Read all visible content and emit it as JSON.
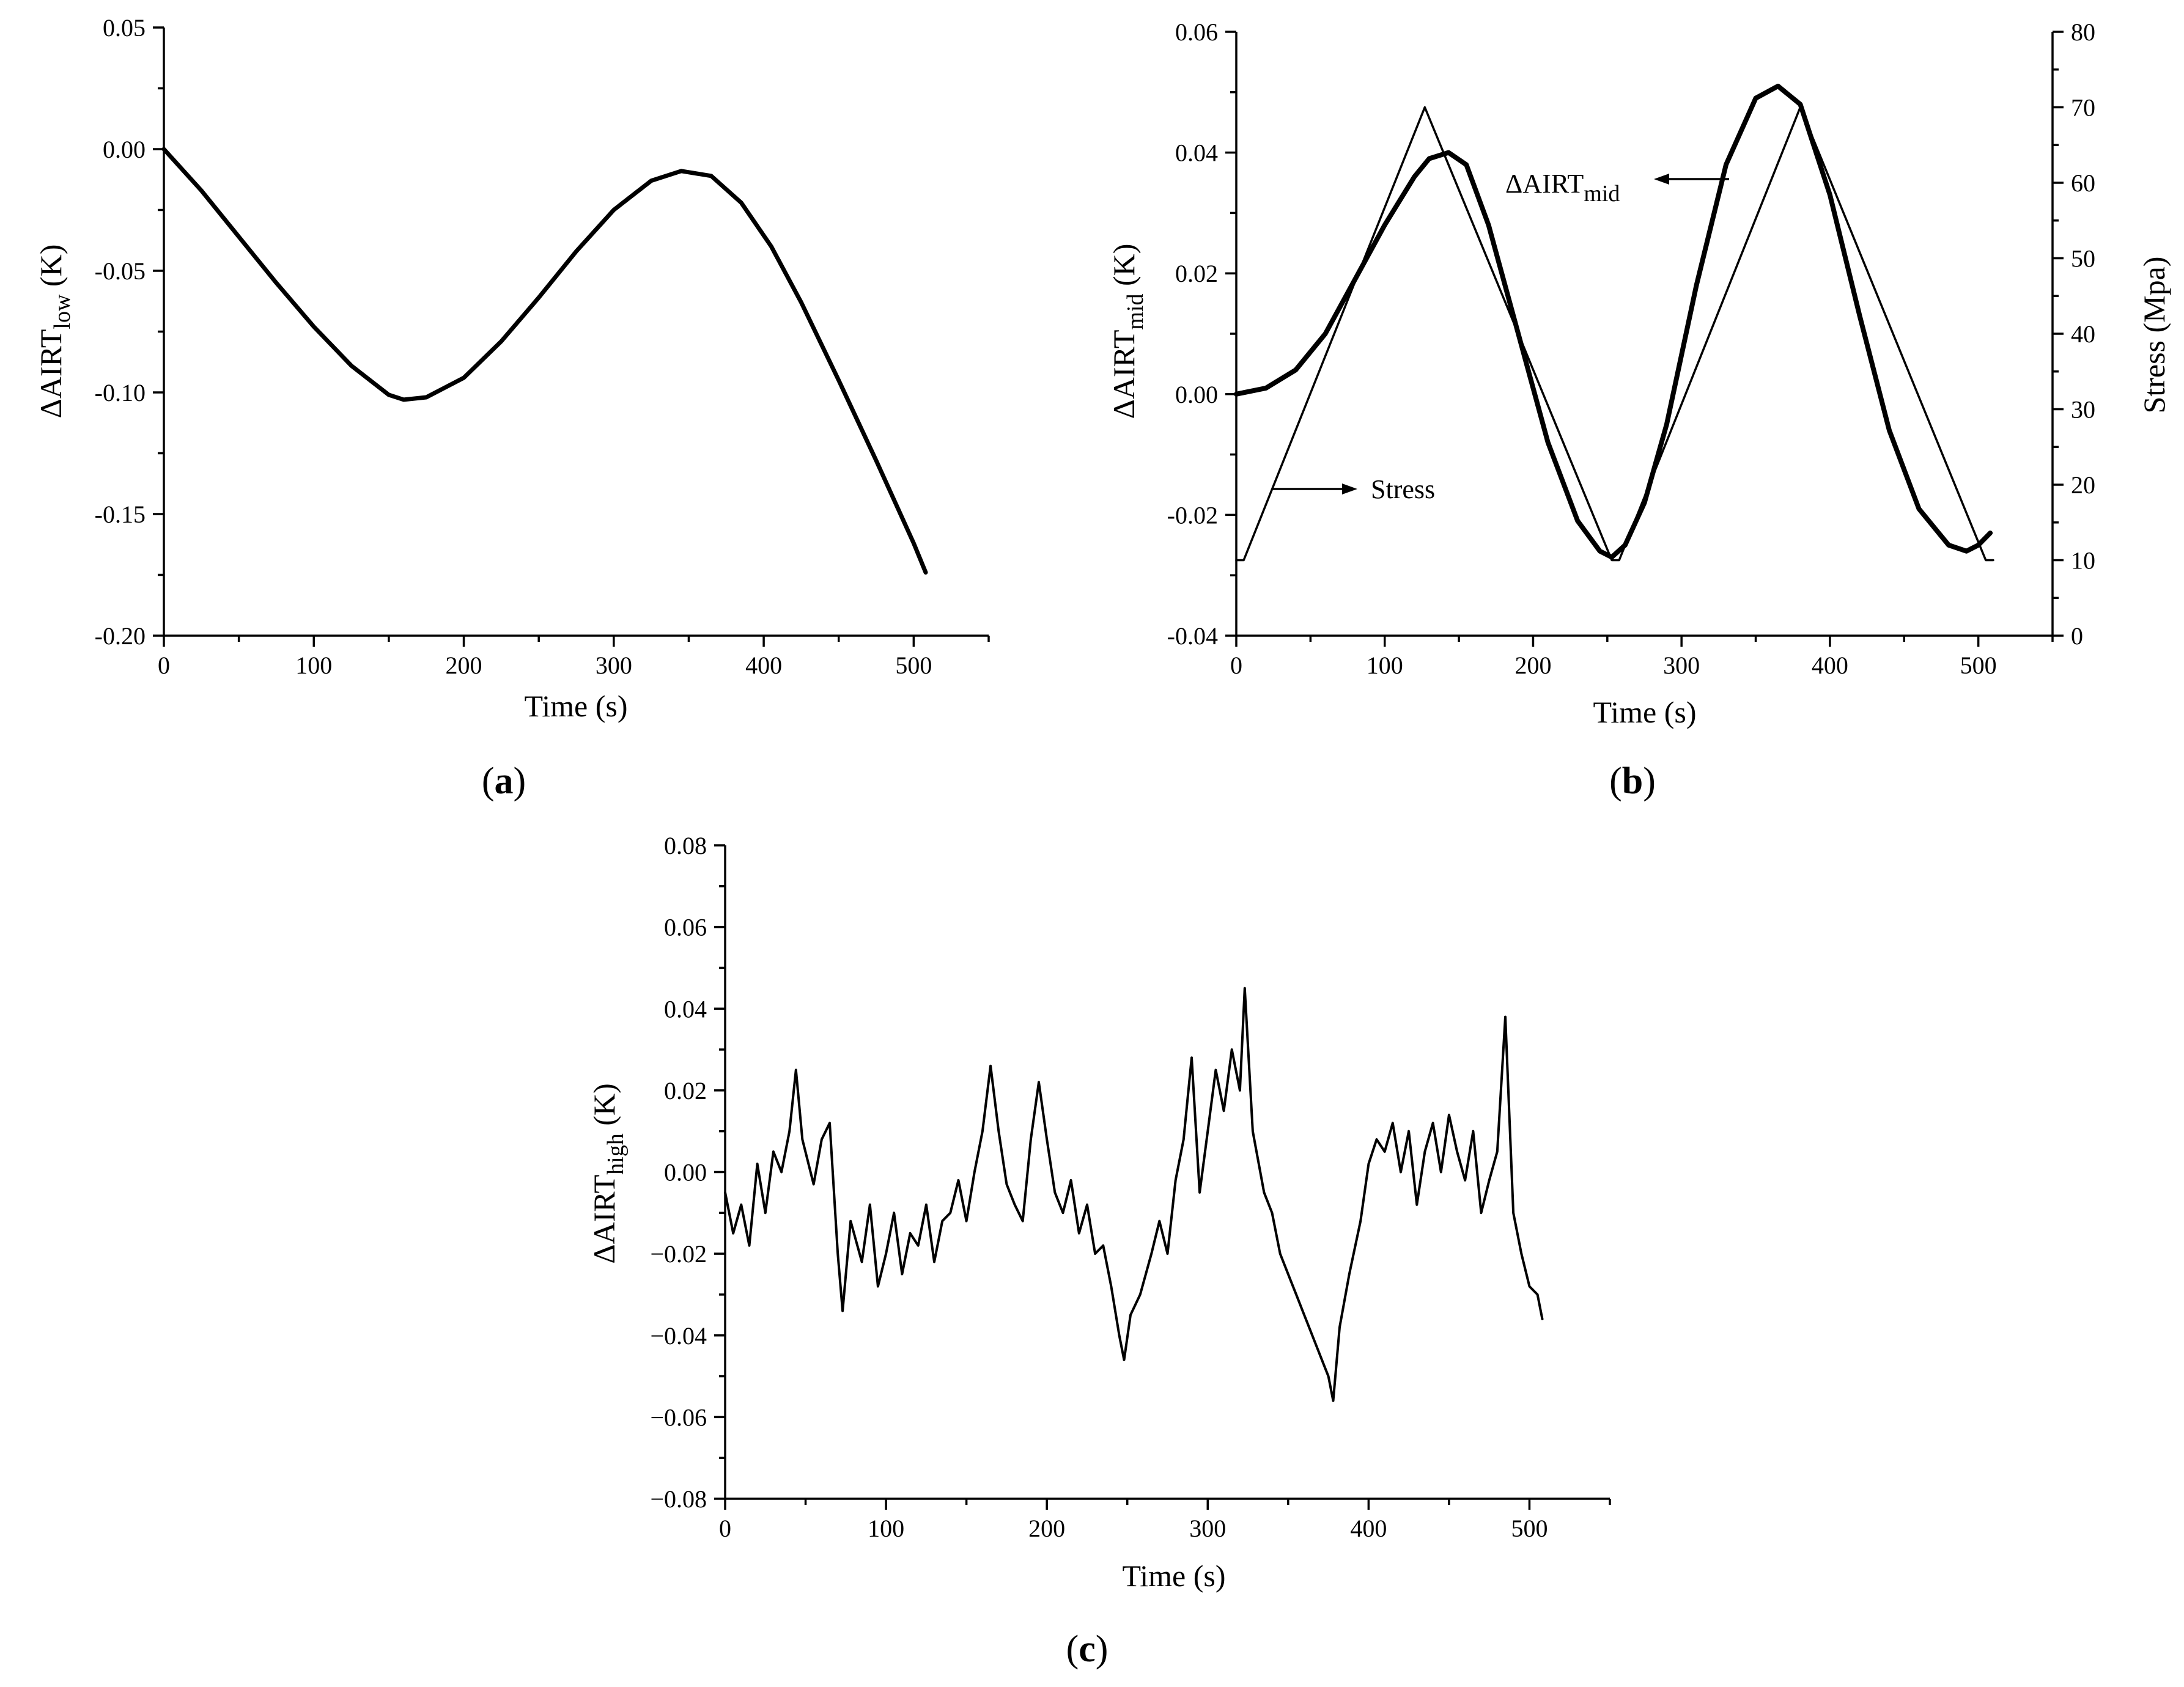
{
  "colors": {
    "background": "#ffffff",
    "ink": "#000000"
  },
  "chart_data": [
    {
      "id": "a",
      "type": "line",
      "panel_label": "a",
      "xlabel": "Time (s)",
      "ylabel": {
        "prefix": "ΔAIRT",
        "sub": "low",
        "suffix": " (K)"
      },
      "xlim": [
        0,
        550
      ],
      "ylim": [
        -0.2,
        0.05
      ],
      "xticks": [
        0,
        100,
        200,
        300,
        400,
        500
      ],
      "xtick_labels": [
        "0",
        "100",
        "200",
        "300",
        "400",
        "500"
      ],
      "yticks": [
        -0.2,
        -0.15,
        -0.1,
        -0.05,
        0.0,
        0.05
      ],
      "ytick_labels": [
        "-0.20",
        "-0.15",
        "-0.10",
        "-0.05",
        "0.00",
        "0.05"
      ],
      "series": [
        {
          "name": "ΔAIRT_low",
          "x": [
            0,
            25,
            50,
            75,
            100,
            125,
            150,
            160,
            175,
            200,
            225,
            250,
            275,
            300,
            325,
            345,
            365,
            385,
            405,
            425,
            450,
            475,
            500,
            508
          ],
          "y": [
            0.0,
            -0.017,
            -0.036,
            -0.055,
            -0.073,
            -0.089,
            -0.101,
            -0.103,
            -0.102,
            -0.094,
            -0.079,
            -0.061,
            -0.042,
            -0.025,
            -0.013,
            -0.009,
            -0.011,
            -0.022,
            -0.04,
            -0.063,
            -0.095,
            -0.128,
            -0.162,
            -0.174
          ]
        }
      ]
    },
    {
      "id": "b",
      "type": "line",
      "panel_label": "b",
      "xlabel": "Time (s)",
      "ylabel": {
        "prefix": "ΔAIRT",
        "sub": "mid",
        "suffix": " (K)"
      },
      "y2label": "Stress (Mpa)",
      "xlim": [
        0,
        550
      ],
      "ylim": [
        -0.04,
        0.06
      ],
      "y2lim": [
        0,
        80
      ],
      "xticks": [
        0,
        100,
        200,
        300,
        400,
        500
      ],
      "xtick_labels": [
        "0",
        "100",
        "200",
        "300",
        "400",
        "500"
      ],
      "yticks": [
        -0.04,
        -0.02,
        0.0,
        0.02,
        0.04,
        0.06
      ],
      "ytick_labels": [
        "-0.04",
        "-0.02",
        "0.00",
        "0.02",
        "0.04",
        "0.06"
      ],
      "y2ticks": [
        0,
        10,
        20,
        30,
        40,
        50,
        60,
        70,
        80
      ],
      "y2tick_labels": [
        "0",
        "10",
        "20",
        "30",
        "40",
        "50",
        "60",
        "70",
        "80"
      ],
      "annotations": [
        {
          "label_prefix": "ΔAIRT",
          "label_sub": "mid",
          "arrow": "left"
        },
        {
          "label": "Stress",
          "arrow": "right"
        }
      ],
      "series": [
        {
          "name": "ΔAIRT_mid",
          "axis": "left",
          "x": [
            0,
            20,
            40,
            60,
            80,
            100,
            120,
            130,
            143,
            155,
            170,
            190,
            210,
            230,
            245,
            253,
            262,
            275,
            290,
            310,
            330,
            350,
            365,
            380,
            400,
            420,
            440,
            460,
            480,
            492,
            500,
            508
          ],
          "y": [
            0.0,
            0.001,
            0.004,
            0.01,
            0.019,
            0.028,
            0.036,
            0.039,
            0.04,
            0.038,
            0.028,
            0.01,
            -0.008,
            -0.021,
            -0.026,
            -0.027,
            -0.025,
            -0.018,
            -0.005,
            0.018,
            0.038,
            0.049,
            0.051,
            0.048,
            0.033,
            0.013,
            -0.006,
            -0.019,
            -0.025,
            -0.026,
            -0.025,
            -0.023
          ]
        },
        {
          "name": "Stress",
          "axis": "right",
          "x": [
            0,
            5,
            127,
            253,
            258,
            380,
            505,
            510
          ],
          "y": [
            10,
            10,
            70,
            10,
            10,
            70,
            10,
            10
          ]
        }
      ]
    },
    {
      "id": "c",
      "type": "line",
      "panel_label": "c",
      "xlabel": "Time (s)",
      "ylabel": {
        "prefix": "ΔAIRT",
        "sub": "high",
        "suffix": " (K)"
      },
      "xlim": [
        0,
        550
      ],
      "ylim": [
        -0.08,
        0.08
      ],
      "xticks": [
        0,
        100,
        200,
        300,
        400,
        500
      ],
      "xtick_labels": [
        "0",
        "100",
        "200",
        "300",
        "400",
        "500"
      ],
      "yticks": [
        -0.08,
        -0.06,
        -0.04,
        -0.02,
        0.0,
        0.02,
        0.04,
        0.06,
        0.08
      ],
      "ytick_labels": [
        "−0.08",
        "−0.06",
        "−0.04",
        "−0.02",
        "0.00",
        "0.02",
        "0.04",
        "0.06",
        "0.08"
      ],
      "series": [
        {
          "name": "ΔAIRT_high",
          "x": [
            0,
            5,
            10,
            15,
            20,
            25,
            30,
            35,
            40,
            44,
            48,
            55,
            60,
            65,
            70,
            73,
            78,
            85,
            90,
            95,
            100,
            105,
            110,
            115,
            120,
            125,
            130,
            135,
            140,
            145,
            150,
            155,
            160,
            165,
            170,
            175,
            180,
            185,
            190,
            195,
            200,
            205,
            210,
            215,
            220,
            225,
            230,
            235,
            240,
            245,
            248,
            252,
            258,
            265,
            270,
            275,
            280,
            285,
            290,
            295,
            300,
            305,
            310,
            315,
            320,
            323,
            328,
            335,
            340,
            345,
            350,
            355,
            360,
            365,
            370,
            375,
            378,
            382,
            388,
            395,
            400,
            405,
            410,
            415,
            420,
            425,
            430,
            435,
            440,
            445,
            450,
            455,
            460,
            465,
            470,
            475,
            480,
            485,
            490,
            495,
            500,
            505,
            508
          ],
          "y": [
            -0.005,
            -0.015,
            -0.008,
            -0.018,
            0.002,
            -0.01,
            0.005,
            0.0,
            0.01,
            0.025,
            0.008,
            -0.003,
            0.008,
            0.012,
            -0.02,
            -0.034,
            -0.012,
            -0.022,
            -0.008,
            -0.028,
            -0.02,
            -0.01,
            -0.025,
            -0.015,
            -0.018,
            -0.008,
            -0.022,
            -0.012,
            -0.01,
            -0.002,
            -0.012,
            0.0,
            0.01,
            0.026,
            0.01,
            -0.003,
            -0.008,
            -0.012,
            0.008,
            0.022,
            0.008,
            -0.005,
            -0.01,
            -0.002,
            -0.015,
            -0.008,
            -0.02,
            -0.018,
            -0.028,
            -0.04,
            -0.046,
            -0.035,
            -0.03,
            -0.02,
            -0.012,
            -0.02,
            -0.002,
            0.008,
            0.028,
            -0.005,
            0.01,
            0.025,
            0.015,
            0.03,
            0.02,
            0.045,
            0.01,
            -0.005,
            -0.01,
            -0.02,
            -0.025,
            -0.03,
            -0.035,
            -0.04,
            -0.045,
            -0.05,
            -0.056,
            -0.038,
            -0.025,
            -0.012,
            0.002,
            0.008,
            0.005,
            0.012,
            0.0,
            0.01,
            -0.008,
            0.005,
            0.012,
            0.0,
            0.014,
            0.005,
            -0.002,
            0.01,
            -0.01,
            -0.002,
            0.005,
            0.038,
            -0.01,
            -0.02,
            -0.028,
            -0.03,
            -0.036
          ]
        }
      ]
    }
  ]
}
